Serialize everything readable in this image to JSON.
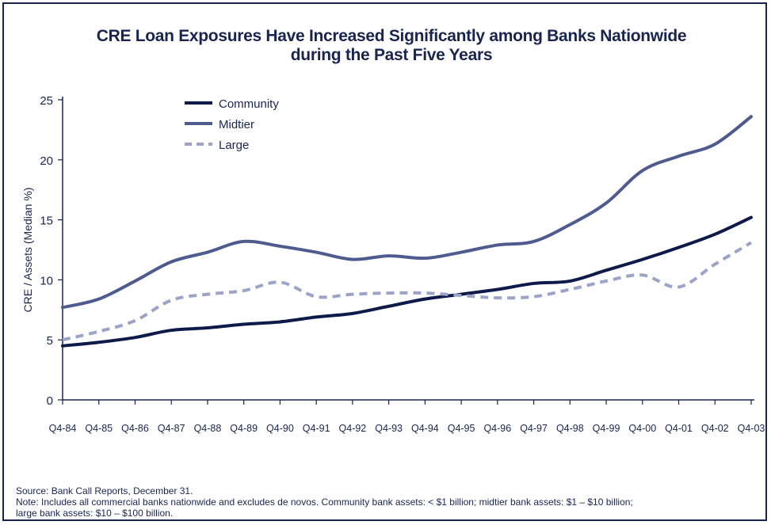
{
  "chart_data": {
    "type": "line",
    "title_line1": "CRE Loan Exposures Have Increased Significantly among Banks Nationwide",
    "title_line2": "during the Past Five Years",
    "xlabel": "",
    "ylabel": "CRE / Assets (Median %)",
    "ylim": [
      0,
      25
    ],
    "yticks": [
      0,
      5,
      10,
      15,
      20,
      25
    ],
    "x_tick_labels": [
      "Q4-84",
      "Q4-85",
      "Q4-86",
      "Q4-87",
      "Q4-88",
      "Q4-89",
      "Q4-90",
      "Q4-91",
      "Q4-92",
      "Q4-93",
      "Q4-94",
      "Q4-95",
      "Q4-96",
      "Q4-97",
      "Q4-98",
      "Q4-99",
      "Q4-00",
      "Q4-01",
      "Q4-02",
      "Q4-03"
    ],
    "legend_position": "top-left",
    "grid": false,
    "series": [
      {
        "name": "Community",
        "color": "#0e1a4a",
        "style": "solid",
        "points": [
          [
            "Q4-84",
            4.5
          ],
          [
            "Q4-85",
            4.8
          ],
          [
            "Q4-86",
            5.2
          ],
          [
            "Q4-87",
            5.8
          ],
          [
            "Q4-88",
            6.0
          ],
          [
            "Q4-89",
            6.3
          ],
          [
            "Q4-90",
            6.5
          ],
          [
            "Q4-91",
            6.9
          ],
          [
            "Q4-92",
            7.2
          ],
          [
            "Q4-93",
            7.8
          ],
          [
            "Q4-94",
            8.4
          ],
          [
            "Q4-95",
            8.8
          ],
          [
            "Q4-96",
            9.2
          ],
          [
            "Q4-97",
            9.7
          ],
          [
            "Q4-98",
            9.9
          ],
          [
            "Q4-99",
            10.8
          ],
          [
            "Q4-00",
            11.7
          ],
          [
            "Q4-01",
            12.7
          ],
          [
            "Q4-02",
            13.8
          ],
          [
            "Q4-03",
            15.2
          ]
        ]
      },
      {
        "name": "Midtier",
        "color": "#4d5b8e",
        "style": "solid",
        "points": [
          [
            "Q4-84",
            7.7
          ],
          [
            "Q4-85",
            8.4
          ],
          [
            "Q4-86",
            9.9
          ],
          [
            "Q4-87",
            11.5
          ],
          [
            "Q4-88",
            12.3
          ],
          [
            "Q4-89",
            13.2
          ],
          [
            "Q4-90",
            12.8
          ],
          [
            "Q4-91",
            12.3
          ],
          [
            "Q4-92",
            11.7
          ],
          [
            "Q4-93",
            12.0
          ],
          [
            "Q4-94",
            11.8
          ],
          [
            "Q4-95",
            12.3
          ],
          [
            "Q4-96",
            12.9
          ],
          [
            "Q4-97",
            13.2
          ],
          [
            "Q4-98",
            14.6
          ],
          [
            "Q4-99",
            16.4
          ],
          [
            "Q4-00",
            19.1
          ],
          [
            "Q4-01",
            20.3
          ],
          [
            "Q4-02",
            21.3
          ],
          [
            "Q4-03",
            23.6
          ]
        ]
      },
      {
        "name": "Large",
        "color": "#9ba4c6",
        "style": "dashed",
        "points": [
          [
            "Q4-84",
            5.0
          ],
          [
            "Q4-85",
            5.7
          ],
          [
            "Q4-86",
            6.6
          ],
          [
            "Q4-87",
            8.3
          ],
          [
            "Q4-88",
            8.8
          ],
          [
            "Q4-89",
            9.1
          ],
          [
            "Q4-90",
            9.8
          ],
          [
            "Q4-91",
            8.6
          ],
          [
            "Q4-92",
            8.8
          ],
          [
            "Q4-93",
            8.9
          ],
          [
            "Q4-94",
            8.9
          ],
          [
            "Q4-95",
            8.7
          ],
          [
            "Q4-96",
            8.5
          ],
          [
            "Q4-97",
            8.6
          ],
          [
            "Q4-98",
            9.2
          ],
          [
            "Q4-99",
            9.9
          ],
          [
            "Q4-00",
            10.4
          ],
          [
            "Q4-01",
            9.4
          ],
          [
            "Q4-02",
            11.3
          ],
          [
            "Q4-03",
            13.1
          ]
        ]
      }
    ]
  },
  "footer": {
    "source": "Source: Bank Call Reports, December 31.",
    "note_line1": "Note:  Includes all commercial banks nationwide and excludes de novos. Community bank assets: < $1 billion;  midtier bank assets: $1 – $10 billion;",
    "note_line2": "large bank assets: $10 – $100 billion."
  }
}
